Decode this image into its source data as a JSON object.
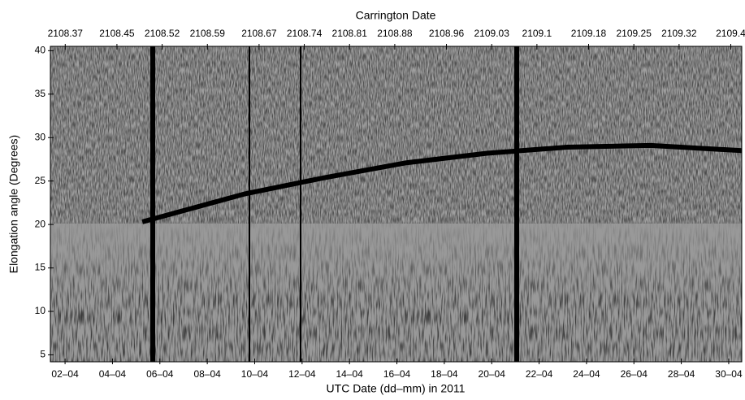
{
  "chart_data": {
    "type": "line",
    "title": "Carrington Date",
    "xlabel": "UTC Date (dd–mm) in 2011",
    "ylabel": "Elongation angle (Degrees)",
    "x": [
      5.26,
      9.55,
      12.97,
      16.4,
      19.8,
      23.2,
      26.7,
      30.55
    ],
    "values": [
      20.3,
      23.5,
      25.4,
      27.1,
      28.2,
      28.9,
      29.1,
      28.5
    ],
    "color": "#000000",
    "xlim": [
      1.38,
      30.55
    ],
    "xticks": [
      {
        "value": 2,
        "label": "02–04"
      },
      {
        "value": 4,
        "label": "04–04"
      },
      {
        "value": 6,
        "label": "06–04"
      },
      {
        "value": 8,
        "label": "08–04"
      },
      {
        "value": 10,
        "label": "10–04"
      },
      {
        "value": 12,
        "label": "12–04"
      },
      {
        "value": 14,
        "label": "14–04"
      },
      {
        "value": 16,
        "label": "16–04"
      },
      {
        "value": 18,
        "label": "18–04"
      },
      {
        "value": 20,
        "label": "20–04"
      },
      {
        "value": 22,
        "label": "22–04"
      },
      {
        "value": 24,
        "label": "24–04"
      },
      {
        "value": 26,
        "label": "26–04"
      },
      {
        "value": 28,
        "label": "28–04"
      },
      {
        "value": 30,
        "label": "30–04"
      }
    ],
    "x2lim": [
      2108.347,
      2109.417
    ],
    "x2ticks": [
      2108.37,
      2108.45,
      2108.52,
      2108.59,
      2108.67,
      2108.74,
      2108.81,
      2108.88,
      2108.96,
      2109.03,
      2109.1,
      2109.18,
      2109.25,
      2109.32,
      2109.4
    ],
    "ylim": [
      4.2,
      40.5
    ],
    "yticks": [
      5,
      10,
      15,
      20,
      25,
      30,
      35,
      40
    ]
  }
}
